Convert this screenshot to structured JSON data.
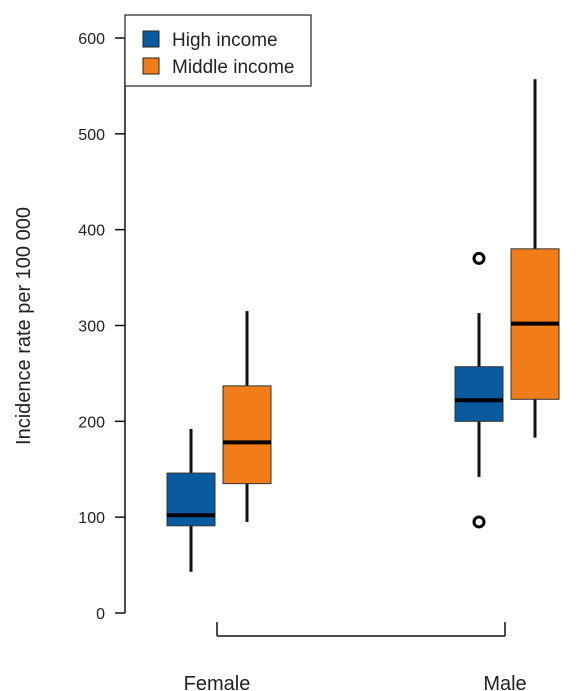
{
  "chart_data": {
    "type": "boxplot",
    "ylabel": "Incidence rate per 100 000",
    "ylim": [
      0,
      600
    ],
    "yticks": [
      0,
      100,
      200,
      300,
      400,
      500,
      600
    ],
    "categories": [
      "Female",
      "Male"
    ],
    "legend_position": "top-left",
    "series": [
      {
        "name": "High income",
        "color": "#0a5aa0",
        "boxes": [
          {
            "category": "Female",
            "whisker_low": 43,
            "q1": 91,
            "median": 102,
            "q3": 146,
            "whisker_high": 192,
            "outliers": []
          },
          {
            "category": "Male",
            "whisker_low": 142,
            "q1": 200,
            "median": 222,
            "q3": 257,
            "whisker_high": 313,
            "outliers": [
              370,
              95
            ]
          }
        ]
      },
      {
        "name": "Middle income",
        "color": "#f07d1a",
        "boxes": [
          {
            "category": "Female",
            "whisker_low": 95,
            "q1": 135,
            "median": 178,
            "q3": 237,
            "whisker_high": 315,
            "outliers": []
          },
          {
            "category": "Male",
            "whisker_low": 183,
            "q1": 223,
            "median": 302,
            "q3": 380,
            "whisker_high": 557,
            "outliers": []
          }
        ]
      }
    ]
  }
}
